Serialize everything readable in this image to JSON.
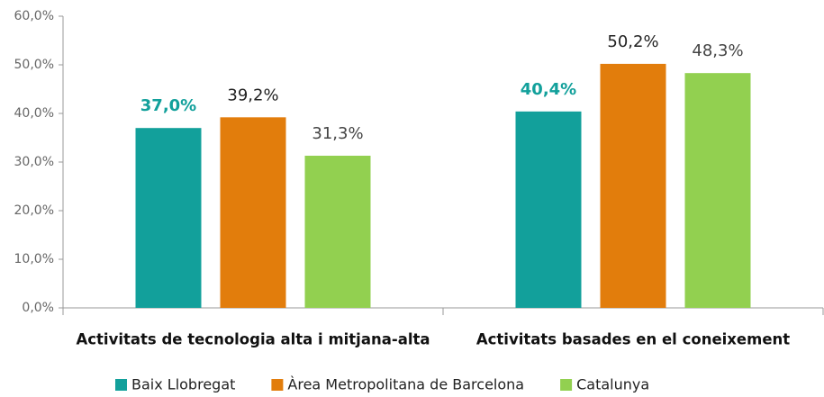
{
  "chart_data": {
    "type": "bar",
    "categories": [
      "Activitats de tecnologia alta i mitjana-alta",
      "Activitats basades en el coneixement"
    ],
    "series": [
      {
        "name": "Baix Llobregat",
        "color": "#12a09b",
        "label_color": "#12a09b",
        "label_weight": "bold",
        "values": [
          37.0,
          40.4
        ],
        "value_labels": [
          "37,0%",
          "40,4%"
        ]
      },
      {
        "name": "Àrea Metropolitana de Barcelona",
        "color": "#e27d0c",
        "label_color": "#222222",
        "label_weight": "normal",
        "values": [
          39.2,
          50.2
        ],
        "value_labels": [
          "39,2%",
          "50,2%"
        ]
      },
      {
        "name": "Catalunya",
        "color": "#92d050",
        "label_color": "#444444",
        "label_weight": "normal",
        "values": [
          31.3,
          48.3
        ],
        "value_labels": [
          "31,3%",
          "48,3%"
        ]
      }
    ],
    "ylim": [
      0,
      60
    ],
    "yticks": [
      {
        "value": 0,
        "label": "0,0%"
      },
      {
        "value": 10,
        "label": "10,0%"
      },
      {
        "value": 20,
        "label": "20,0%"
      },
      {
        "value": 30,
        "label": "30,0%"
      },
      {
        "value": 40,
        "label": "40,0%"
      },
      {
        "value": 50,
        "label": "50,0%"
      },
      {
        "value": 60,
        "label": "60,0%"
      }
    ],
    "grid": false,
    "legend": "bottom"
  }
}
